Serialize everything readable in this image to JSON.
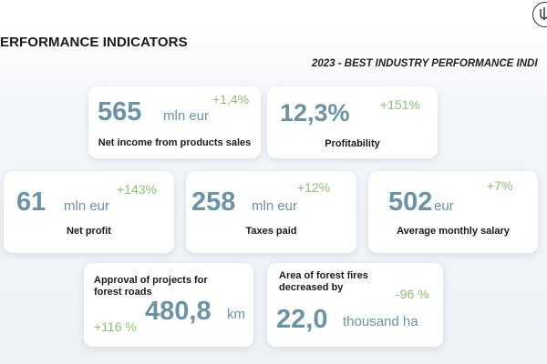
{
  "header": {
    "title": "ERFORMANCE INDICATORS",
    "subtitle": "2023 - BEST INDUSTRY PERFORMANCE INDI"
  },
  "brand": {
    "logo_icon": "trident-emblem-icon"
  },
  "colors": {
    "value": "#6a93a8",
    "growth": "#8fbf75",
    "text": "#1a1a1a"
  },
  "cards": {
    "net_income": {
      "value": "565",
      "unit": "mln eur",
      "growth": "+1,4%",
      "label": "Net income from products sales"
    },
    "profitability": {
      "value": "12,3%",
      "growth": "+151%",
      "label": "Profitability"
    },
    "net_profit": {
      "value": "61",
      "unit": "mln eur",
      "growth": "+143%",
      "label": "Net profit"
    },
    "taxes": {
      "value": "258",
      "unit": "mln eur",
      "growth": "+12%",
      "label": "Taxes paid"
    },
    "salary": {
      "value": "502",
      "unit": "eur",
      "growth": "+7%",
      "label": "Average monthly salary"
    },
    "roads": {
      "label_line1": "Approval of projects for",
      "label_line2": "forest roads",
      "value": "480,8",
      "unit": "km",
      "growth": "+116 %"
    },
    "fires": {
      "label_line1": "Area of forest fires",
      "label_line2": "decreased by",
      "value": "22,0",
      "unit": "thousand ha",
      "growth": "-96 %"
    }
  }
}
